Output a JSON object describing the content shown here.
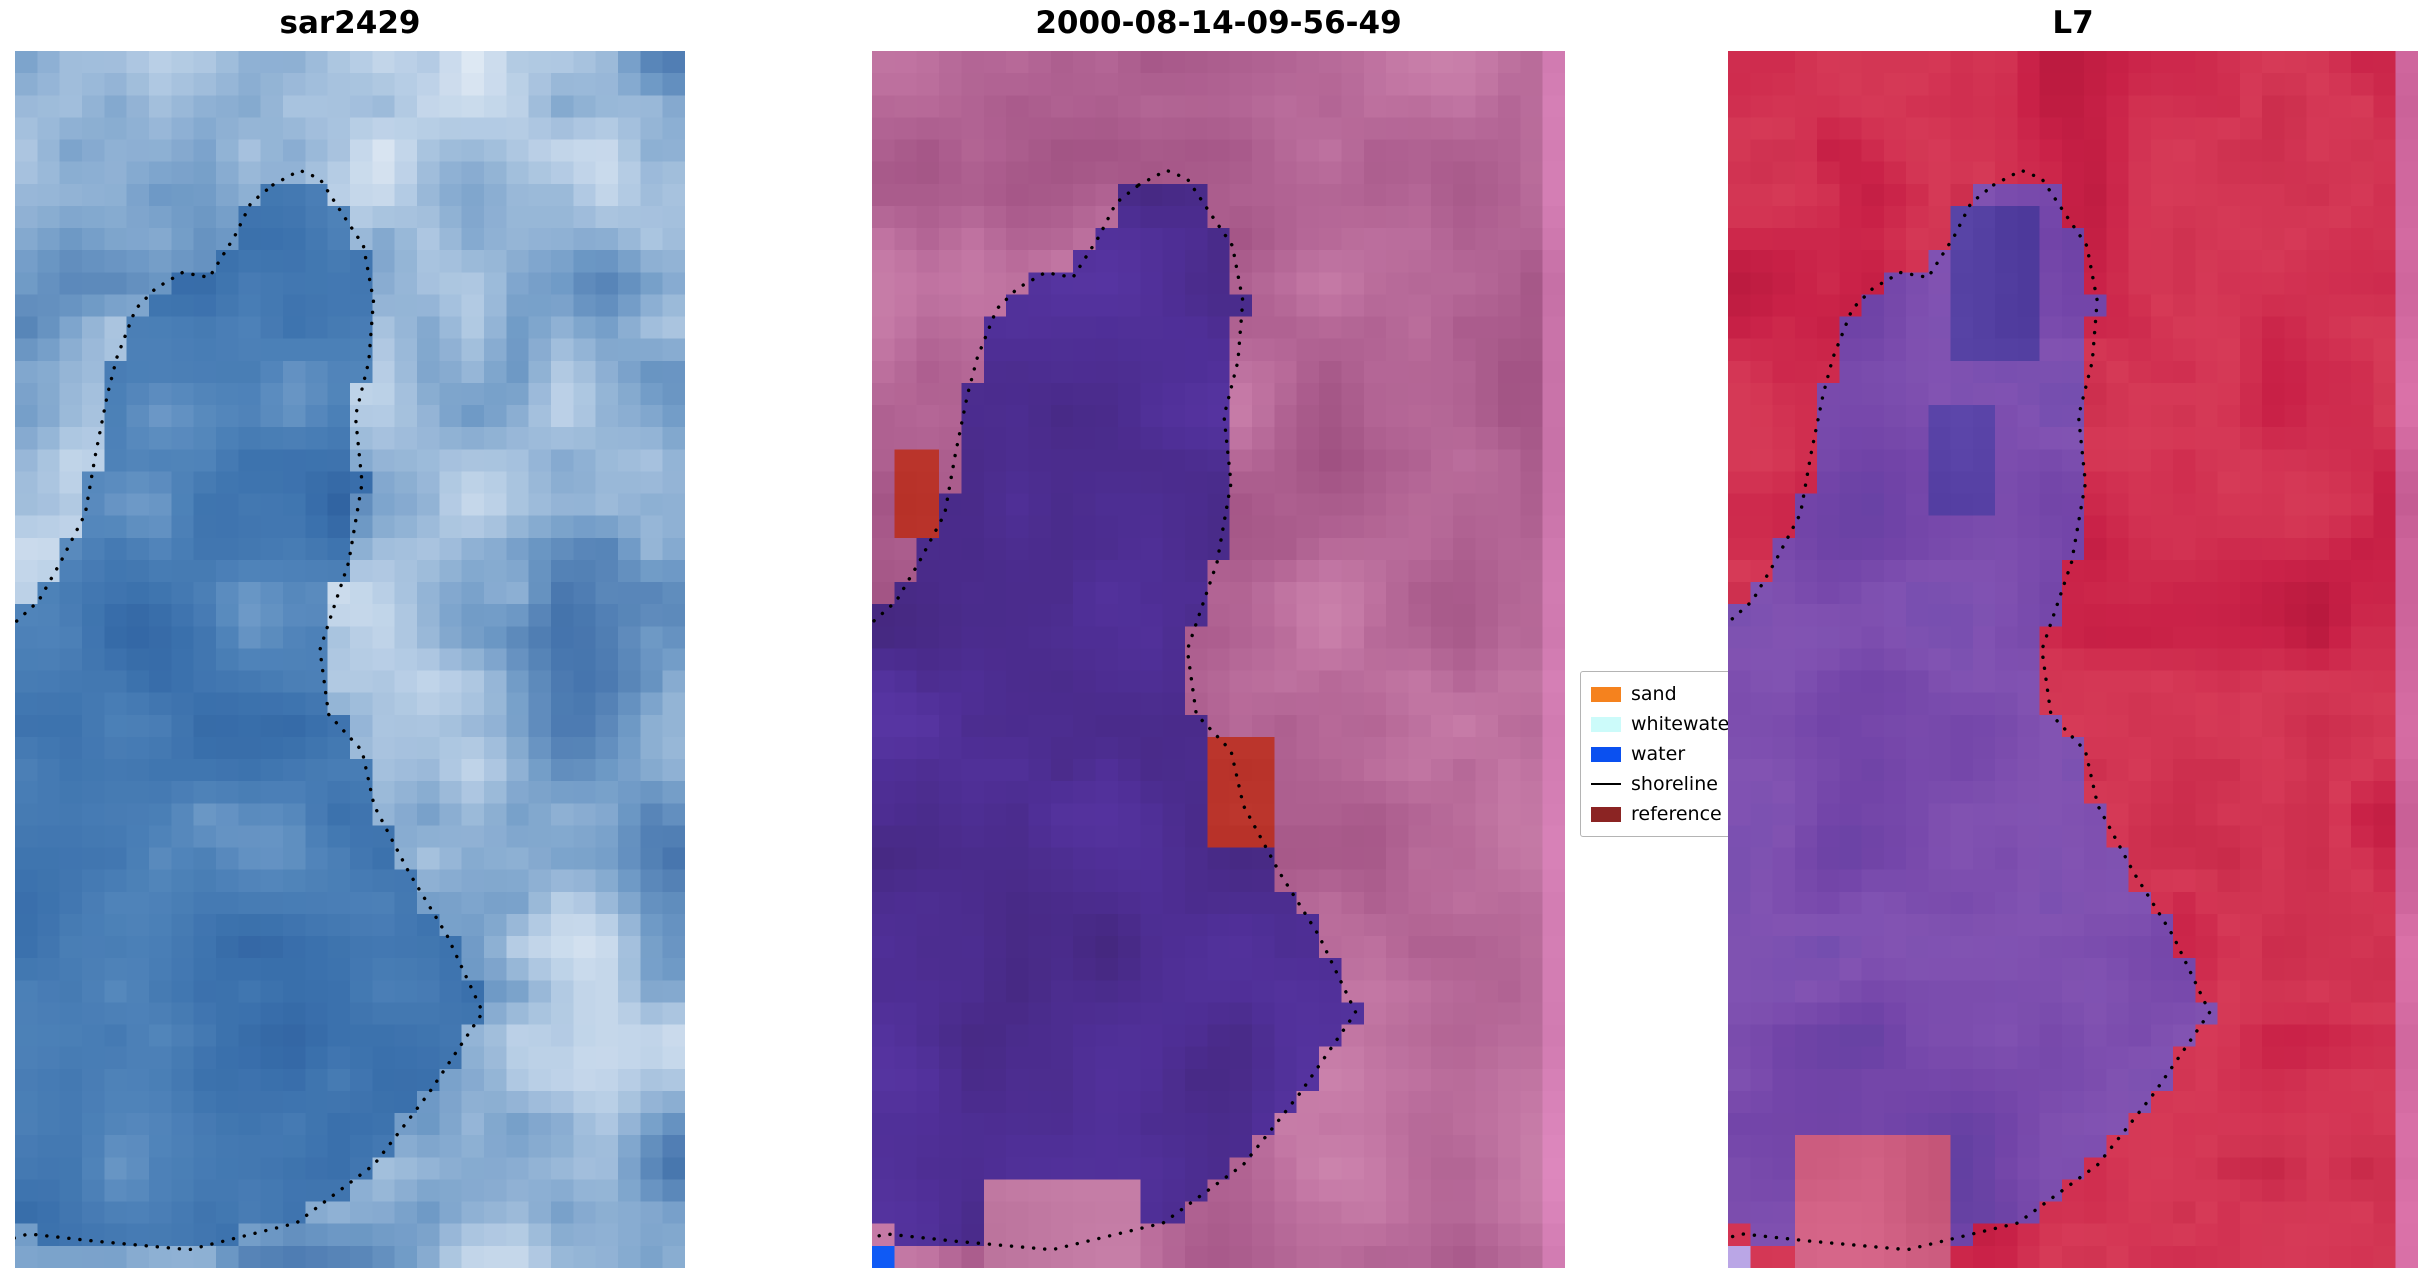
{
  "panels": [
    {
      "title": "sar2429",
      "seed": 11,
      "grid": [
        30,
        55
      ],
      "exterior": [
        "#3a6aa6",
        "#6f9ac6",
        "#b9cfe6",
        "#f4f7fb"
      ],
      "interior": [
        "#2a5a9a",
        "#3a70ac",
        "#4f83b9",
        "#7fa6cf"
      ],
      "patches": []
    },
    {
      "title": "2000-08-14-09-56-49",
      "seed": 22,
      "grid": [
        31,
        55
      ],
      "exterior": [
        "#9c4d7e",
        "#b06292",
        "#c377a4",
        "#cf88b0"
      ],
      "interior": [
        "#44277d",
        "#4f2f97",
        "#5a37a6"
      ],
      "patches": [
        {
          "r": [
            0.965,
            1.0,
            0.0,
            1.0
          ],
          "color": "#d27cb2"
        },
        {
          "r": [
            0.02,
            0.105,
            0.325,
            0.4
          ],
          "color": "#c03a31"
        },
        {
          "r": [
            0.485,
            0.585,
            0.565,
            0.655
          ],
          "color": "#c03a31"
        },
        {
          "r": [
            0.17,
            0.38,
            0.925,
            1.0
          ],
          "color": "#c37ba4"
        },
        {
          "r": [
            0.0,
            0.028,
            0.975,
            1.0
          ],
          "color": "#0a55f0"
        }
      ]
    },
    {
      "title": "L7",
      "seed": 33,
      "grid": [
        31,
        55
      ],
      "exterior": [
        "#b2163a",
        "#c92147",
        "#d63a57",
        "#c42445"
      ],
      "interior": [
        "#5e3fa0",
        "#7244a8",
        "#8253b2",
        "#6b4aad"
      ],
      "patches": [
        {
          "r": [
            0.965,
            1.0,
            0.0,
            1.0
          ],
          "color": "#d0679e"
        },
        {
          "r": [
            0.1,
            0.33,
            0.9,
            1.0
          ],
          "color": "#cf5f82"
        },
        {
          "r": [
            0.33,
            0.46,
            0.12,
            0.26
          ],
          "color": "#4f3b9d"
        },
        {
          "r": [
            0.3,
            0.4,
            0.3,
            0.38
          ],
          "color": "#5640a4"
        },
        {
          "r": [
            0.0,
            0.028,
            0.975,
            1.0
          ],
          "color": "#b7a3e3"
        }
      ]
    }
  ],
  "contour": [
    [
      0.385,
      0.11
    ],
    [
      0.425,
      0.098
    ],
    [
      0.455,
      0.105
    ],
    [
      0.49,
      0.135
    ],
    [
      0.52,
      0.16
    ],
    [
      0.535,
      0.205
    ],
    [
      0.528,
      0.255
    ],
    [
      0.508,
      0.3
    ],
    [
      0.518,
      0.355
    ],
    [
      0.498,
      0.42
    ],
    [
      0.455,
      0.492
    ],
    [
      0.468,
      0.545
    ],
    [
      0.518,
      0.575
    ],
    [
      0.536,
      0.62
    ],
    [
      0.588,
      0.675
    ],
    [
      0.645,
      0.727
    ],
    [
      0.698,
      0.79
    ],
    [
      0.652,
      0.828
    ],
    [
      0.618,
      0.856
    ],
    [
      0.585,
      0.88
    ],
    [
      0.536,
      0.915
    ],
    [
      0.42,
      0.963
    ],
    [
      0.26,
      0.985
    ],
    [
      0.12,
      0.978
    ],
    [
      0.02,
      0.972
    ],
    [
      -0.06,
      0.985
    ],
    [
      -0.06,
      0.5
    ],
    [
      0.035,
      0.452
    ],
    [
      0.068,
      0.42
    ],
    [
      0.105,
      0.38
    ],
    [
      0.12,
      0.332
    ],
    [
      0.138,
      0.282
    ],
    [
      0.152,
      0.252
    ],
    [
      0.18,
      0.212
    ],
    [
      0.21,
      0.195
    ],
    [
      0.25,
      0.182
    ],
    [
      0.29,
      0.186
    ],
    [
      0.328,
      0.152
    ],
    [
      0.352,
      0.125
    ]
  ],
  "legend": {
    "items": [
      {
        "label": "sand",
        "color": "#f5821e",
        "swatch": "rect"
      },
      {
        "label": "whitewater",
        "color": "#ccfbfa",
        "swatch": "rect"
      },
      {
        "label": "water",
        "color": "#0a50f0",
        "swatch": "rect"
      },
      {
        "label": "shoreline",
        "color": "#000000",
        "swatch": "line"
      },
      {
        "label": "reference",
        "color": "#8b2423",
        "swatch": "rect"
      }
    ]
  },
  "chart_data": {
    "type": "image-panels",
    "title": "",
    "panels": [
      {
        "title": "sar2429",
        "content": "SAR satellite image in blue/white tones of a water body with detected shoreline drawn as black dots"
      },
      {
        "title": "2000-08-14-09-56-49",
        "content": "Classified satellite scene: water body as dark purple region, pink/mauve land, red sand patches, blue water marker square bottom-left, black dotted shoreline"
      },
      {
        "title": "L7",
        "content": "Landsat 7 false-color composite: red land, purple water body, pink right edge strip, black dotted shoreline"
      }
    ],
    "legend": {
      "entries": [
        "sand",
        "whitewater",
        "water",
        "shoreline",
        "reference"
      ],
      "position": "between second and third panel, vertically centered, partially clipped by third panel"
    },
    "shoreline_contour_normalized": "stored in top-level key contour as [x,y] pairs in 0-1 panel coordinates, shared by all three panels"
  }
}
